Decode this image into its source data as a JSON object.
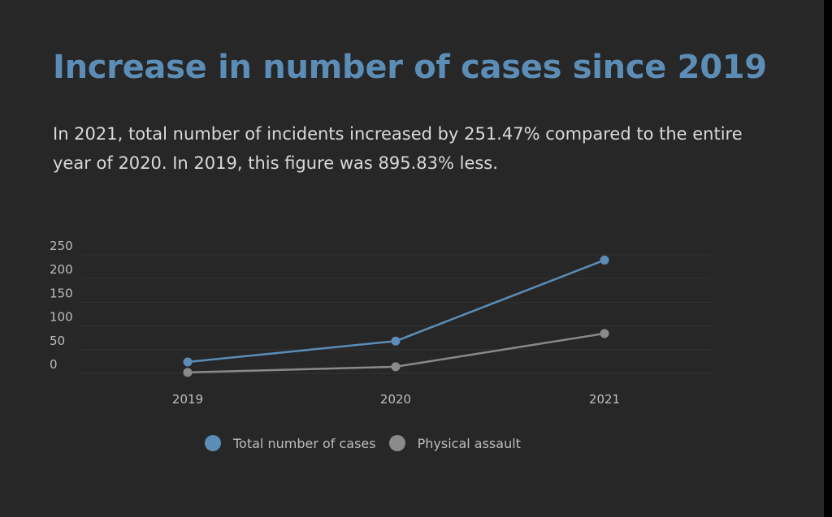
{
  "header": {
    "title": "Increase in number of cases since 2019",
    "subtitle": "In 2021, total number of incidents increased by 251.47% compared to the entire year of 2020. In 2019, this figure was 895.83% less."
  },
  "colors": {
    "background": "#272727",
    "title": "#5b8db7",
    "total_series": "#5b8db7",
    "assault_series": "#8a8a8a",
    "grid": "#333333",
    "tick_text": "#bdbdbd"
  },
  "chart_data": {
    "type": "line",
    "title": "",
    "xlabel": "",
    "ylabel": "",
    "categories": [
      "2019",
      "2020",
      "2021"
    ],
    "yticks": [
      "250",
      "200",
      "150",
      "100",
      "50",
      "0"
    ],
    "ylim": [
      0,
      250
    ],
    "grid": true,
    "legend_position": "bottom",
    "series": [
      {
        "name": "Total number of cases",
        "values": [
          24,
          68,
          239
        ],
        "color": "#5b8db7"
      },
      {
        "name": "Physical assault",
        "values": [
          2,
          14,
          84
        ],
        "color": "#8a8a8a"
      }
    ]
  }
}
